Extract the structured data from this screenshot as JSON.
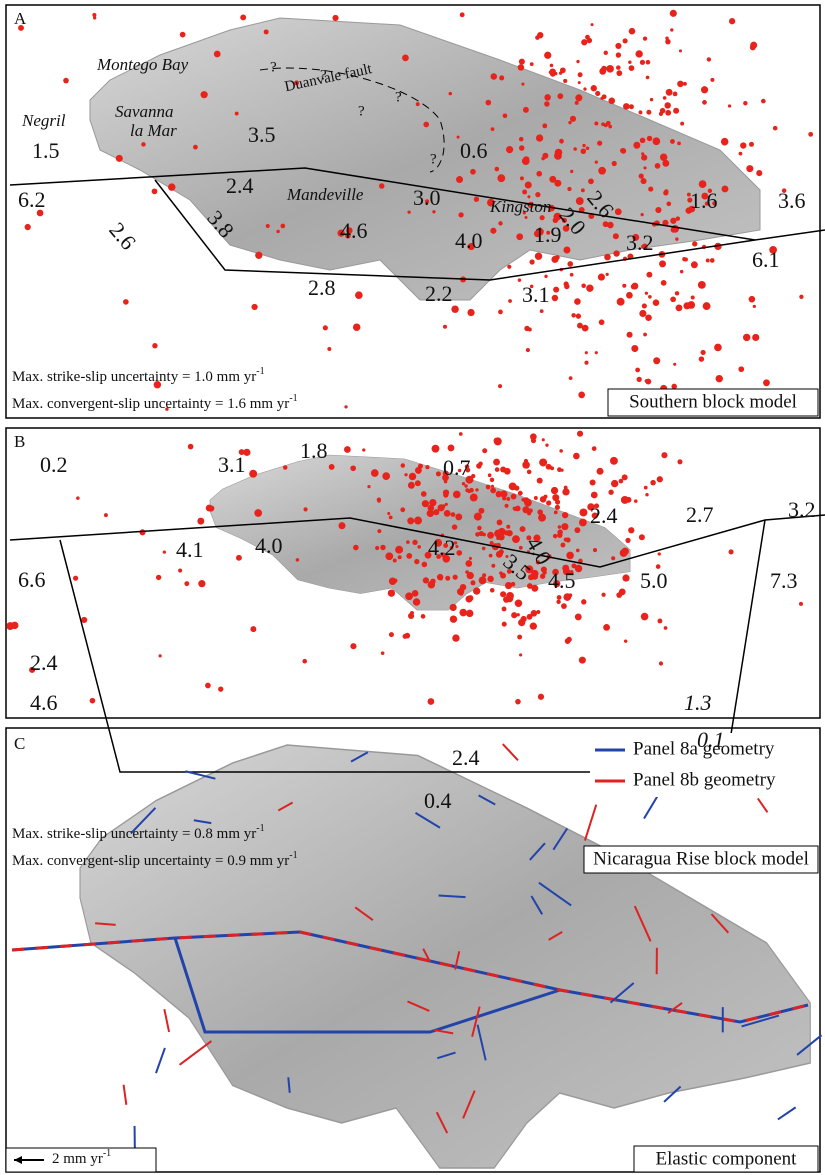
{
  "panels": [
    {
      "label": "A",
      "places": [
        "Montego Bay",
        "Savanna",
        "la Mar",
        "Negril",
        "Duanvale fault",
        "Mandeville",
        "Kingston"
      ],
      "uncertain_mark": "?",
      "rates": [
        "1.5",
        "6.2",
        "3.5",
        "2.4",
        "2.6",
        "3.8",
        "0.6",
        "3.0",
        "4.6",
        "4.0",
        "2.8",
        "2.2",
        "1.9",
        "3.1",
        "2.6",
        "2.0",
        "3.2",
        "1.6",
        "3.6",
        "6.1"
      ],
      "uncertainty": [
        {
          "text": "Max. strike-slip uncertainty = 1.0 mm yr",
          "sup": "-1"
        },
        {
          "text": "Max. convergent-slip uncertainty = 1.6 mm yr",
          "sup": "-1"
        }
      ],
      "model": "Southern block model"
    },
    {
      "label": "B",
      "rates": [
        "0.2",
        "6.6",
        "3.1",
        "4.1",
        "1.8",
        "4.0",
        "0.7",
        "4.2",
        "3.5",
        "4.0",
        "4.5",
        "2.4",
        "2.7",
        "5.0",
        "3.2",
        "7.3",
        "1.3",
        "0.1",
        "2.4",
        "4.6",
        "2.4",
        "0.4"
      ],
      "uncertainty": [
        {
          "text": "Max. strike-slip uncertainty = 0.8 mm yr",
          "sup": "-1"
        },
        {
          "text": "Max. convergent-slip uncertainty = 0.9 mm yr",
          "sup": "-1"
        }
      ],
      "model": "Nicaragua Rise block model"
    },
    {
      "label": "C",
      "legend": [
        "Panel 8a geometry",
        "Panel 8b geometry"
      ],
      "scale": {
        "text": "2 mm yr",
        "sup": "-1"
      },
      "model": "Elastic component"
    }
  ]
}
